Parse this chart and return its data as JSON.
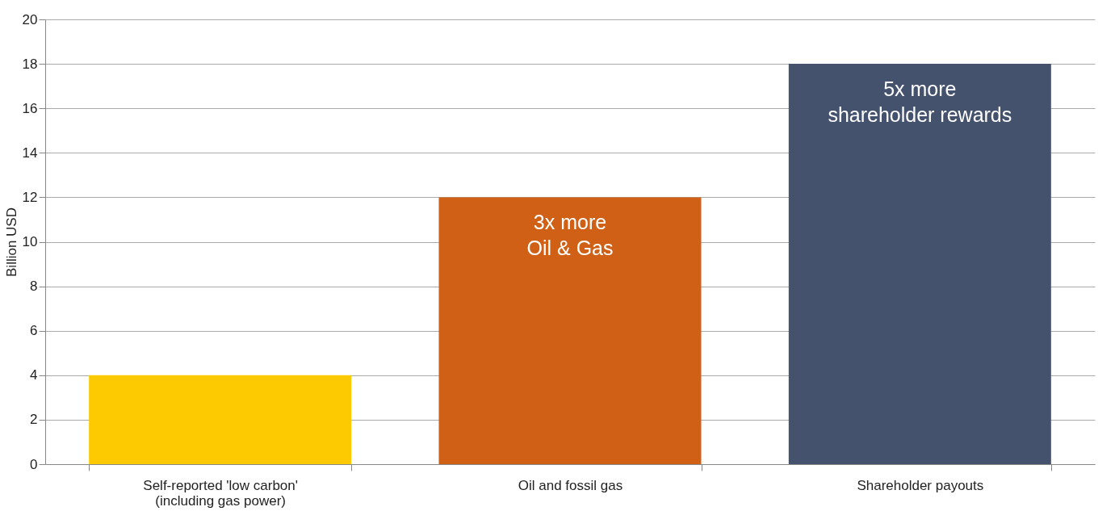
{
  "chart_data": {
    "type": "bar",
    "ylabel": "Billion USD",
    "categories": [
      "Self-reported 'low carbon'\n(including gas power)",
      "Oil and fossil gas",
      "Shareholder payouts"
    ],
    "values": [
      4,
      12,
      18
    ],
    "colors": [
      "#fdc900",
      "#d06015",
      "#45526e"
    ],
    "ylim": [
      0,
      20
    ],
    "yticks": [
      0,
      2,
      4,
      6,
      8,
      10,
      12,
      14,
      16,
      18,
      20
    ],
    "grid": "y",
    "annotations": [
      "3x more\nOil & Gas",
      "5x more\nshareholder rewards"
    ]
  }
}
